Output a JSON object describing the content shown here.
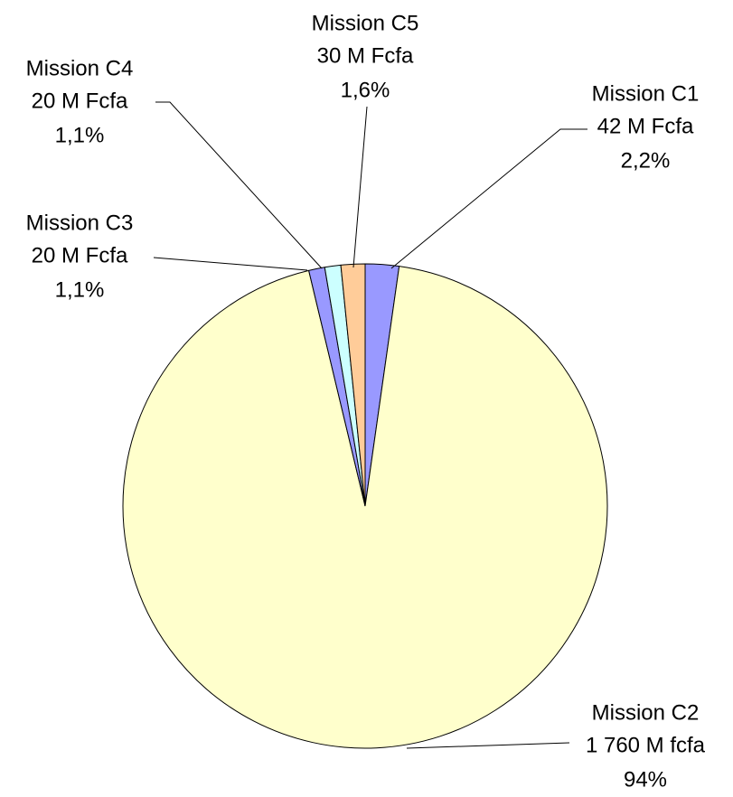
{
  "chart_data": {
    "type": "pie",
    "categories": [
      "Mission C1",
      "Mission C2",
      "Mission C3",
      "Mission C4",
      "Mission C5"
    ],
    "values": [
      42,
      1760,
      20,
      20,
      30
    ],
    "value_labels": [
      "42 M Fcfa",
      "1 760 M fcfa",
      "20 M Fcfa",
      "20 M Fcfa",
      "30 M Fcfa"
    ],
    "percent_labels": [
      "2,2%",
      "94%",
      "1,1%",
      "1,1%",
      "1,6%"
    ],
    "colors": [
      "#9999ff",
      "#ffffcc",
      "#9999ff",
      "#ccffff",
      "#ffcc99"
    ]
  }
}
